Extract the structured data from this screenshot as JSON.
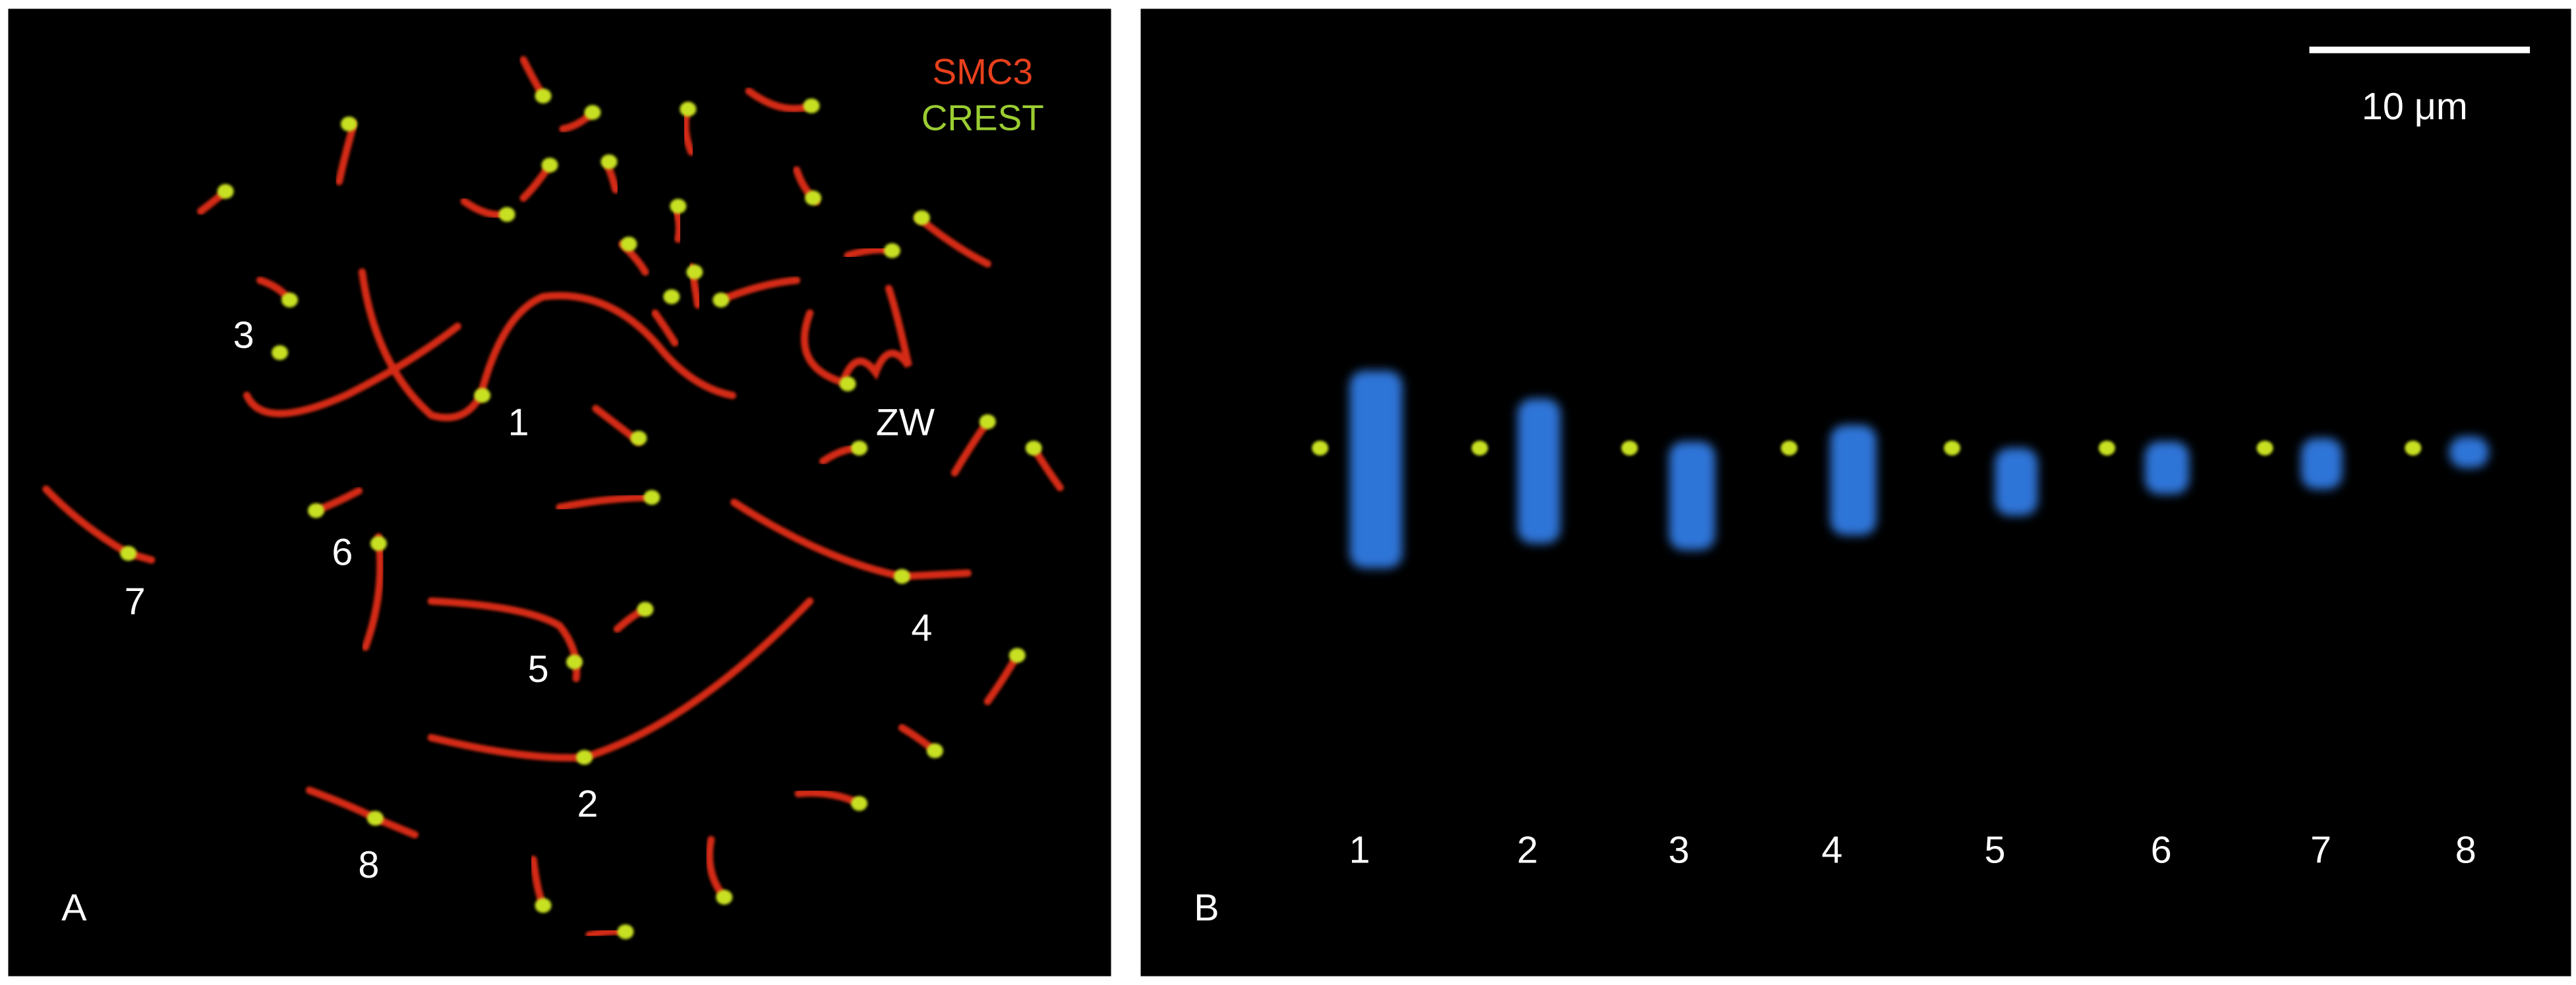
{
  "panel_a": {
    "legend": [
      "SMC3",
      "CREST"
    ],
    "labels": [
      "3",
      "1",
      "ZW",
      "6",
      "7",
      "4",
      "5",
      "2",
      "8"
    ],
    "panel_label": "A"
  },
  "panel_b": {
    "scale_bar": "10 μm",
    "labels": [
      "1",
      "2",
      "3",
      "4",
      "5",
      "6",
      "7",
      "8"
    ],
    "panel_label": "B"
  }
}
